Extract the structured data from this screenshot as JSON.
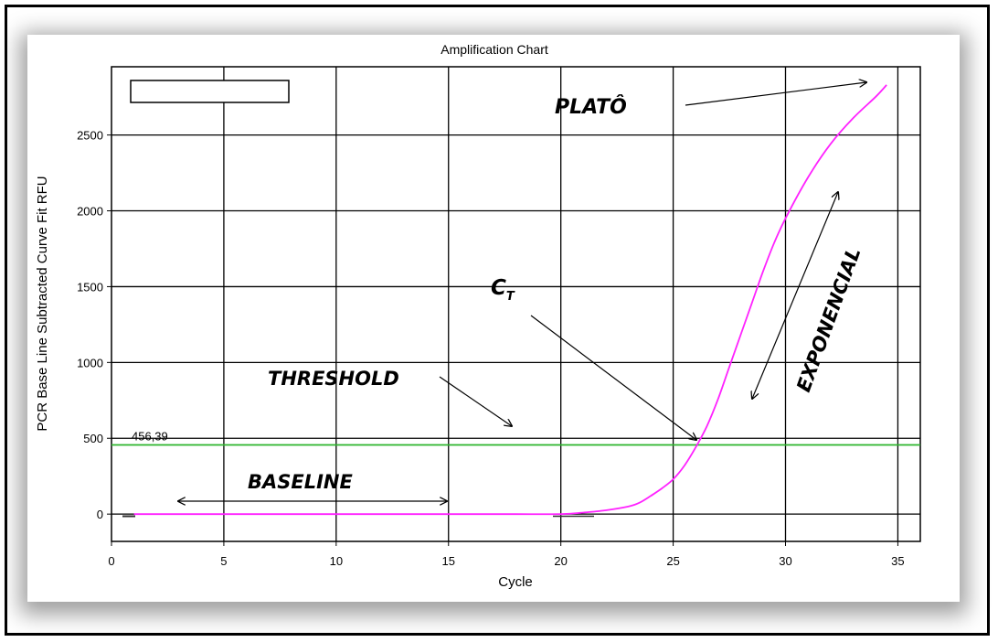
{
  "chart_data": {
    "type": "line",
    "title": "Amplification Chart",
    "xlabel": "Cycle",
    "ylabel": "PCR Base Line Subtracted Curve Fit RFU",
    "xlim": [
      0,
      36
    ],
    "ylim": [
      -180,
      2950
    ],
    "x_ticks": [
      0,
      5,
      10,
      15,
      20,
      25,
      30,
      35
    ],
    "y_ticks": [
      0,
      500,
      1000,
      1500,
      2000,
      2500
    ],
    "grid": true,
    "threshold": {
      "value": 456.39,
      "label": "456,39",
      "color": "#2db52d"
    },
    "series": [
      {
        "color": "#ff22ff",
        "x": [
          1,
          2,
          4,
          6,
          8,
          10,
          12,
          14,
          16,
          18,
          20,
          21,
          22,
          23,
          23.5,
          24,
          24.5,
          25,
          25.5,
          26,
          26.5,
          27,
          27.5,
          28,
          28.5,
          29,
          29.5,
          30,
          31,
          32,
          33,
          34,
          34.5
        ],
        "y": [
          0,
          0,
          0,
          0,
          0,
          0,
          0,
          0,
          0,
          0,
          0,
          10,
          25,
          50,
          75,
          120,
          170,
          230,
          320,
          440,
          580,
          760,
          970,
          1180,
          1390,
          1600,
          1790,
          1950,
          2220,
          2440,
          2610,
          2750,
          2830
        ]
      }
    ],
    "annotations": [
      {
        "text": "PLATÔ"
      },
      {
        "text": "EXPONENCIAL"
      },
      {
        "text": "C",
        "subscript": "T"
      },
      {
        "text": "THRESHOLD"
      },
      {
        "text": "BASELINE"
      }
    ]
  }
}
